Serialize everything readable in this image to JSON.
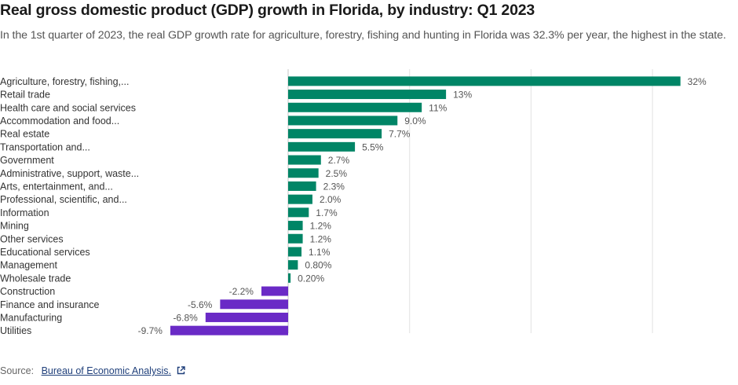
{
  "header": {
    "title": "Real gross domestic product (GDP) growth in Florida, by industry: Q1 2023",
    "subtitle": "In the 1st quarter of 2023, the real GDP growth rate for agriculture, forestry, fishing and hunting in Florida was 32.3% per year, the highest in the state."
  },
  "footer": {
    "source_label": "Source:",
    "source_link": "Bureau of Economic Analysis.",
    "link_icon": "external-link-icon"
  },
  "colors": {
    "positive": "#008566",
    "negative": "#6A2AC6",
    "grid": "#e6e6e6"
  },
  "chart_data": {
    "type": "bar",
    "orientation": "horizontal",
    "title": "Real gross domestic product (GDP) growth in Florida, by industry: Q1 2023",
    "xlabel": "",
    "ylabel": "",
    "unit": "%",
    "xlim": [
      -10,
      33
    ],
    "gridlines_x": [
      0,
      10,
      20,
      30
    ],
    "grid": true,
    "legend": "none",
    "categories": [
      "Agriculture, forestry, fishing,...",
      "Retail trade",
      "Health care and social services",
      "Accommodation and food...",
      "Real estate",
      "Transportation and...",
      "Government",
      "Administrative, support, waste...",
      "Arts, entertainment, and...",
      "Professional, scientific, and...",
      "Information",
      "Mining",
      "Other services",
      "Educational services",
      "Management",
      "Wholesale trade",
      "Construction",
      "Finance and insurance",
      "Manufacturing",
      "Utilities"
    ],
    "values": [
      32.3,
      13,
      11,
      9.0,
      7.7,
      5.5,
      2.7,
      2.5,
      2.3,
      2.0,
      1.7,
      1.2,
      1.2,
      1.1,
      0.8,
      0.2,
      -2.2,
      -5.6,
      -6.8,
      -9.7
    ],
    "data_labels": [
      "32%",
      "13%",
      "11%",
      "9.0%",
      "7.7%",
      "5.5%",
      "2.7%",
      "2.5%",
      "2.3%",
      "2.0%",
      "1.7%",
      "1.2%",
      "1.2%",
      "1.1%",
      "0.80%",
      "0.20%",
      "-2.2%",
      "-5.6%",
      "-6.8%",
      "-9.7%"
    ]
  }
}
